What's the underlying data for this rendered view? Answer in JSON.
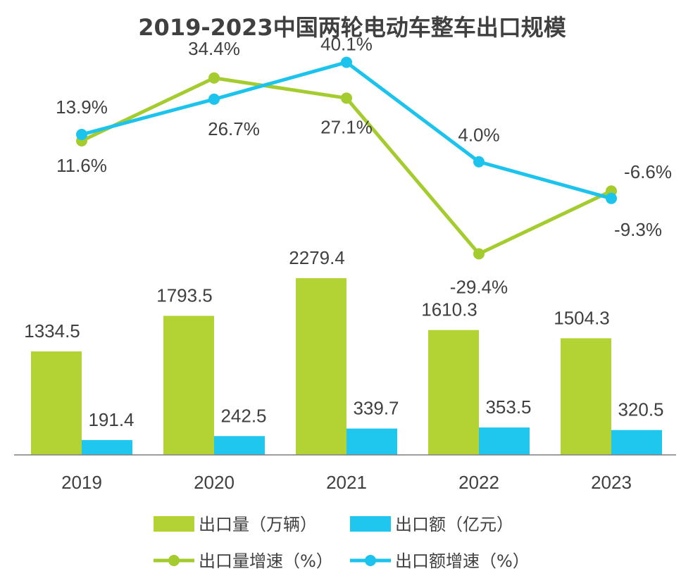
{
  "chart_data": {
    "type": "bar+line",
    "title": "2019-2023中国两轮电动车整车出口规模",
    "categories": [
      "2019",
      "2020",
      "2021",
      "2022",
      "2023"
    ],
    "bar_series": [
      {
        "name": "出口量（万辆）",
        "color": "#B3D335",
        "values": [
          1334.5,
          1793.5,
          2279.4,
          1610.3,
          1504.3
        ],
        "labels": [
          "1334.5",
          "1793.5",
          "2279.4",
          "1610.3",
          "1504.3"
        ]
      },
      {
        "name": "出口额（亿元）",
        "color": "#1FC6EE",
        "values": [
          191.4,
          242.5,
          339.7,
          353.5,
          320.5
        ],
        "labels": [
          "191.4",
          "242.5",
          "339.7",
          "353.5",
          "320.5"
        ]
      }
    ],
    "line_series": [
      {
        "name": "出口量增速（%）",
        "color": "#A5CC2F",
        "values": [
          11.6,
          34.4,
          27.1,
          -29.4,
          -6.6
        ],
        "labels": [
          "11.6%",
          "34.4%",
          "27.1%",
          "-29.4%",
          "-6.6%"
        ]
      },
      {
        "name": "出口额增速（%）",
        "color": "#1CC3EC",
        "values": [
          13.9,
          26.7,
          40.1,
          4.0,
          -9.3
        ],
        "labels": [
          "13.9%",
          "26.7%",
          "40.1%",
          "4.0%",
          "-9.3%"
        ]
      }
    ],
    "bar_ylim": [
      0,
      2500
    ],
    "line_ylim": [
      -35,
      45
    ],
    "legend_position": "bottom"
  }
}
